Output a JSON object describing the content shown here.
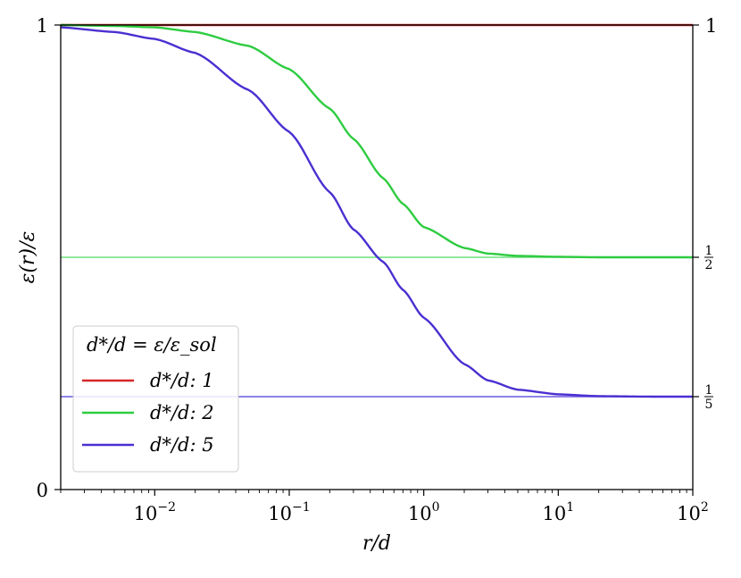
{
  "chart_data": {
    "type": "line",
    "xlabel": "r/d",
    "ylabel": "ε(r)/ε",
    "x_scale": "log",
    "xlim": [
      0.002,
      100
    ],
    "ylim": [
      0,
      1
    ],
    "x_ticks": [
      {
        "value": 0.01,
        "base": "10",
        "exp": "−2"
      },
      {
        "value": 0.1,
        "base": "10",
        "exp": "−1"
      },
      {
        "value": 1,
        "base": "10",
        "exp": "0"
      },
      {
        "value": 10,
        "base": "10",
        "exp": "1"
      },
      {
        "value": 100,
        "base": "10",
        "exp": "2"
      }
    ],
    "y_ticks_left": [
      {
        "value": 0,
        "label": "0"
      },
      {
        "value": 1,
        "label": "1"
      }
    ],
    "y_ticks_right": [
      {
        "value": 1,
        "label": "1"
      },
      {
        "value": 0.5,
        "num": "1",
        "den": "2"
      },
      {
        "value": 0.2,
        "num": "1",
        "den": "5"
      }
    ],
    "grid": false,
    "legend": {
      "placement": "lower-left",
      "title": "d*/d = ε/ε_sol",
      "entries": [
        "d*/d: 1",
        "d*/d: 2",
        "d*/d: 5"
      ]
    },
    "series": [
      {
        "name": "d*/d: 1",
        "color": "#d62728",
        "x": [
          0.002,
          0.01,
          0.1,
          1,
          10,
          100
        ],
        "y": [
          1,
          1,
          1,
          1,
          1,
          1
        ]
      },
      {
        "name": "d*/d: 2",
        "color": "#2ecc40",
        "x": [
          0.002,
          0.005,
          0.01,
          0.02,
          0.05,
          0.1,
          0.2,
          0.3,
          0.5,
          0.7,
          1,
          2,
          3,
          5,
          10,
          20,
          50,
          100
        ],
        "y": [
          1.0,
          0.998,
          0.995,
          0.985,
          0.955,
          0.905,
          0.82,
          0.755,
          0.67,
          0.615,
          0.565,
          0.52,
          0.508,
          0.503,
          0.501,
          0.5,
          0.5,
          0.5
        ]
      },
      {
        "name": "d*/d: 5",
        "color": "#4b2fd1",
        "x": [
          0.002,
          0.005,
          0.01,
          0.02,
          0.05,
          0.1,
          0.2,
          0.3,
          0.5,
          0.7,
          1,
          2,
          3,
          5,
          10,
          20,
          50,
          100
        ],
        "y": [
          0.995,
          0.985,
          0.97,
          0.94,
          0.86,
          0.77,
          0.64,
          0.56,
          0.49,
          0.43,
          0.37,
          0.27,
          0.235,
          0.215,
          0.205,
          0.201,
          0.2,
          0.2
        ]
      }
    ],
    "reference_lines": [
      {
        "y": 0.5,
        "color": "#6fe07a"
      },
      {
        "y": 0.2,
        "color": "#6a5ae0"
      }
    ]
  }
}
